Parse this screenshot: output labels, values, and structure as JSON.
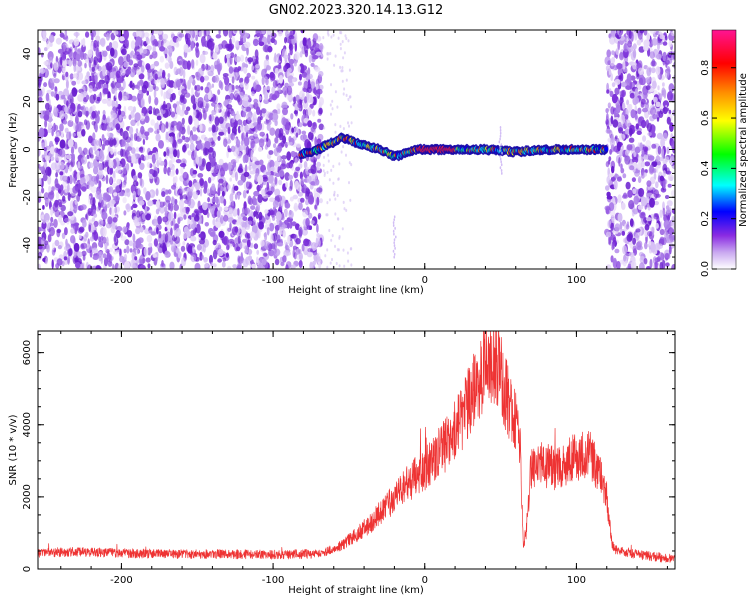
{
  "figure": {
    "title": "GN02.2023.320.14.13.G12"
  },
  "chart_data": [
    {
      "type": "heatmap",
      "title": "GN02.2023.320.14.13.G12",
      "xlabel": "Height of straight line (km)",
      "ylabel": "Frequency (Hz)",
      "xlim": [
        -255,
        165
      ],
      "ylim": [
        -50,
        50
      ],
      "xticks": [
        -200,
        -100,
        0,
        100
      ],
      "yticks": [
        -40,
        -20,
        0,
        20,
        40
      ],
      "xtick_labels": [
        "-200",
        "-100",
        "0",
        "100"
      ],
      "ytick_labels": [
        "-40",
        "-20",
        "0",
        "20",
        "40"
      ],
      "colorbar": {
        "label": "Normalized spectral amplitude",
        "range": [
          0,
          0.95
        ],
        "ticks": [
          "0.0",
          "0.2",
          "0.4",
          "0.6",
          "0.8"
        ],
        "colors": [
          "#ffffff",
          "#8a2be2",
          "#0000ff",
          "#00ffff",
          "#00ff00",
          "#ffff00",
          "#ff8c00",
          "#ff0000",
          "#ff1493"
        ]
      },
      "noise_regions_km": [
        [
          -255,
          -68
        ],
        [
          120,
          165
        ]
      ],
      "quiet_region_km": [
        -68,
        120
      ],
      "signal_ridge": {
        "x": [
          -82,
          -75,
          -70,
          -65,
          -60,
          -55,
          -50,
          -45,
          -40,
          -35,
          -30,
          -25,
          -20,
          -15,
          -10,
          -5,
          0,
          20,
          40,
          60,
          80,
          100,
          115,
          120
        ],
        "y": [
          -2,
          -1,
          0,
          2,
          3,
          5,
          4,
          3,
          2,
          1,
          0,
          -1,
          -3,
          -2,
          -1,
          0,
          0,
          0,
          0,
          -1,
          0,
          0,
          0,
          0
        ]
      }
    },
    {
      "type": "line",
      "xlabel": "Height of straight line (km)",
      "ylabel": "SNR (10 * v/v)",
      "xlim": [
        -255,
        165
      ],
      "ylim": [
        0,
        6600
      ],
      "xticks": [
        -200,
        -100,
        0,
        100
      ],
      "yticks": [
        0,
        2000,
        4000,
        6000
      ],
      "xtick_labels": [
        "-200",
        "-100",
        "0",
        "100"
      ],
      "ytick_labels": [
        "0",
        "2000",
        "4000",
        "6000"
      ],
      "series": [
        {
          "color": "#ee3333",
          "x": [
            -255,
            -230,
            -200,
            -170,
            -140,
            -110,
            -90,
            -75,
            -65,
            -55,
            -45,
            -35,
            -25,
            -15,
            -5,
            5,
            15,
            25,
            35,
            40,
            45,
            50,
            55,
            60,
            63,
            65,
            67,
            70,
            75,
            85,
            95,
            105,
            110,
            115,
            120,
            123,
            125,
            130,
            140,
            150,
            160,
            165
          ],
          "y": [
            450,
            480,
            440,
            420,
            420,
            400,
            400,
            420,
            480,
            650,
            950,
            1300,
            1750,
            2200,
            2600,
            3000,
            3500,
            4200,
            5200,
            5600,
            5900,
            5500,
            4600,
            4200,
            3300,
            600,
            1100,
            2800,
            2900,
            2800,
            3000,
            3200,
            3100,
            2700,
            2000,
            800,
            550,
            500,
            400,
            350,
            300,
            280
          ]
        }
      ]
    }
  ]
}
